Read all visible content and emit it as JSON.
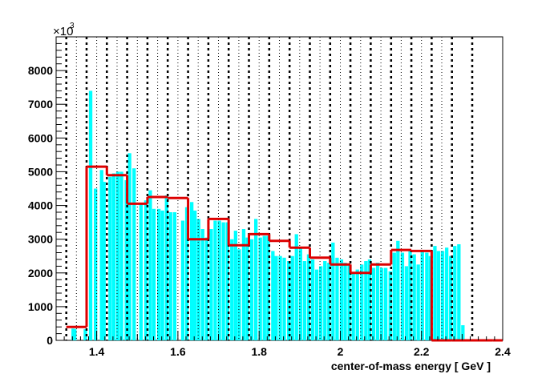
{
  "chart_data": {
    "type": "bar",
    "xlabel": "center-of-mass energy [ GeV ]",
    "ylabel": "",
    "y_multiplier": "×10",
    "y_multiplier_exp": "3",
    "xlim": [
      1.3,
      2.4
    ],
    "ylim": [
      0,
      9000
    ],
    "x_ticks": [
      1.4,
      1.6,
      1.8,
      2.0,
      2.2,
      2.4
    ],
    "x_tick_labels": [
      "1.4",
      "1.6",
      "1.8",
      "2",
      "2.2",
      "2.4"
    ],
    "y_ticks": [
      0,
      1000,
      2000,
      3000,
      4000,
      5000,
      6000,
      7000,
      8000
    ],
    "y_tick_labels": [
      "0",
      "1000",
      "2000",
      "3000",
      "4000",
      "5000",
      "6000",
      "7000",
      "8000"
    ],
    "grid": false,
    "colors": {
      "bars": "#00ffff",
      "step": "#dd0000",
      "dashed": "#000000"
    },
    "fine_bars": {
      "name": "",
      "points": [
        [
          1.342,
          350
        ],
        [
          1.346,
          330
        ],
        [
          1.372,
          330
        ],
        [
          1.385,
          7400
        ],
        [
          1.397,
          4500
        ],
        [
          1.412,
          5050
        ],
        [
          1.418,
          4700
        ],
        [
          1.433,
          4850
        ],
        [
          1.442,
          4950
        ],
        [
          1.452,
          5000
        ],
        [
          1.461,
          5000
        ],
        [
          1.473,
          4750
        ],
        [
          1.481,
          5550
        ],
        [
          1.492,
          5100
        ],
        [
          1.509,
          4050
        ],
        [
          1.521,
          4150
        ],
        [
          1.532,
          4450
        ],
        [
          1.541,
          3900
        ],
        [
          1.553,
          3900
        ],
        [
          1.562,
          3850
        ],
        [
          1.572,
          4300
        ],
        [
          1.582,
          3800
        ],
        [
          1.592,
          3800
        ],
        [
          1.612,
          3550
        ],
        [
          1.622,
          3950
        ],
        [
          1.634,
          4100
        ],
        [
          1.642,
          3850
        ],
        [
          1.651,
          3600
        ],
        [
          1.661,
          3300
        ],
        [
          1.671,
          3050
        ],
        [
          1.682,
          3300
        ],
        [
          1.692,
          3550
        ],
        [
          1.702,
          3550
        ],
        [
          1.712,
          3500
        ],
        [
          1.722,
          3500
        ],
        [
          1.733,
          3000
        ],
        [
          1.742,
          3250
        ],
        [
          1.751,
          2700
        ],
        [
          1.762,
          3300
        ],
        [
          1.771,
          3050
        ],
        [
          1.782,
          3000
        ],
        [
          1.792,
          3600
        ],
        [
          1.803,
          3050
        ],
        [
          1.813,
          3100
        ],
        [
          1.822,
          3100
        ],
        [
          1.834,
          2650
        ],
        [
          1.842,
          2500
        ],
        [
          1.852,
          2500
        ],
        [
          1.862,
          2450
        ],
        [
          1.873,
          2350
        ],
        [
          1.882,
          2500
        ],
        [
          1.892,
          3150
        ],
        [
          1.902,
          2750
        ],
        [
          1.912,
          2350
        ],
        [
          1.922,
          2550
        ],
        [
          1.932,
          2400
        ],
        [
          1.942,
          2100
        ],
        [
          1.952,
          2200
        ],
        [
          1.962,
          2350
        ],
        [
          1.972,
          2300
        ],
        [
          1.982,
          2900
        ],
        [
          1.992,
          2450
        ],
        [
          2.003,
          2400
        ],
        [
          2.012,
          2300
        ],
        [
          2.022,
          2250
        ],
        [
          2.032,
          2000
        ],
        [
          2.042,
          2100
        ],
        [
          2.053,
          2250
        ],
        [
          2.063,
          2350
        ],
        [
          2.072,
          2400
        ],
        [
          2.082,
          2150
        ],
        [
          2.092,
          2300
        ],
        [
          2.102,
          2150
        ],
        [
          2.112,
          2150
        ],
        [
          2.123,
          2050
        ],
        [
          2.133,
          2600
        ],
        [
          2.142,
          2950
        ],
        [
          2.153,
          2600
        ],
        [
          2.163,
          2200
        ],
        [
          2.172,
          2650
        ],
        [
          2.182,
          2550
        ],
        [
          2.192,
          2250
        ],
        [
          2.202,
          2650
        ],
        [
          2.213,
          2600
        ],
        [
          2.222,
          2500
        ],
        [
          2.233,
          2800
        ],
        [
          2.242,
          2650
        ],
        [
          2.252,
          2650
        ],
        [
          2.262,
          2750
        ],
        [
          2.272,
          2500
        ],
        [
          2.282,
          2800
        ],
        [
          2.292,
          2850
        ],
        [
          2.302,
          450
        ]
      ]
    },
    "step_histogram": {
      "name": "",
      "bins": [
        [
          1.325,
          1.375,
          400
        ],
        [
          1.375,
          1.425,
          5150
        ],
        [
          1.425,
          1.475,
          4900
        ],
        [
          1.475,
          1.525,
          4050
        ],
        [
          1.525,
          1.575,
          4250
        ],
        [
          1.575,
          1.625,
          4220
        ],
        [
          1.625,
          1.675,
          3000
        ],
        [
          1.675,
          1.725,
          3600
        ],
        [
          1.725,
          1.775,
          2820
        ],
        [
          1.775,
          1.825,
          3150
        ],
        [
          1.825,
          1.875,
          2950
        ],
        [
          1.875,
          1.925,
          2750
        ],
        [
          1.925,
          1.975,
          2450
        ],
        [
          1.975,
          2.025,
          2250
        ],
        [
          2.025,
          2.075,
          2000
        ],
        [
          2.075,
          2.125,
          2250
        ],
        [
          2.125,
          2.175,
          2680
        ],
        [
          2.175,
          2.225,
          2650
        ],
        [
          2.225,
          2.275,
          0
        ],
        [
          2.275,
          2.325,
          0
        ],
        [
          2.325,
          2.375,
          0
        ],
        [
          2.375,
          2.4,
          0
        ]
      ]
    },
    "thick_dashed_x": [
      1.325,
      1.375,
      1.425,
      1.475,
      1.525,
      1.575,
      1.625,
      1.675,
      1.725,
      1.775,
      1.825,
      1.875,
      1.925,
      1.975,
      2.025,
      2.075,
      2.125,
      2.175,
      2.225,
      2.275,
      2.325
    ],
    "thin_dotted_x": [
      1.35,
      1.4,
      1.45,
      1.5,
      1.55,
      1.6,
      1.65,
      1.7,
      1.75,
      1.8,
      1.85,
      1.9,
      1.95,
      2.0,
      2.05,
      2.1,
      2.15,
      2.2,
      2.25
    ]
  }
}
